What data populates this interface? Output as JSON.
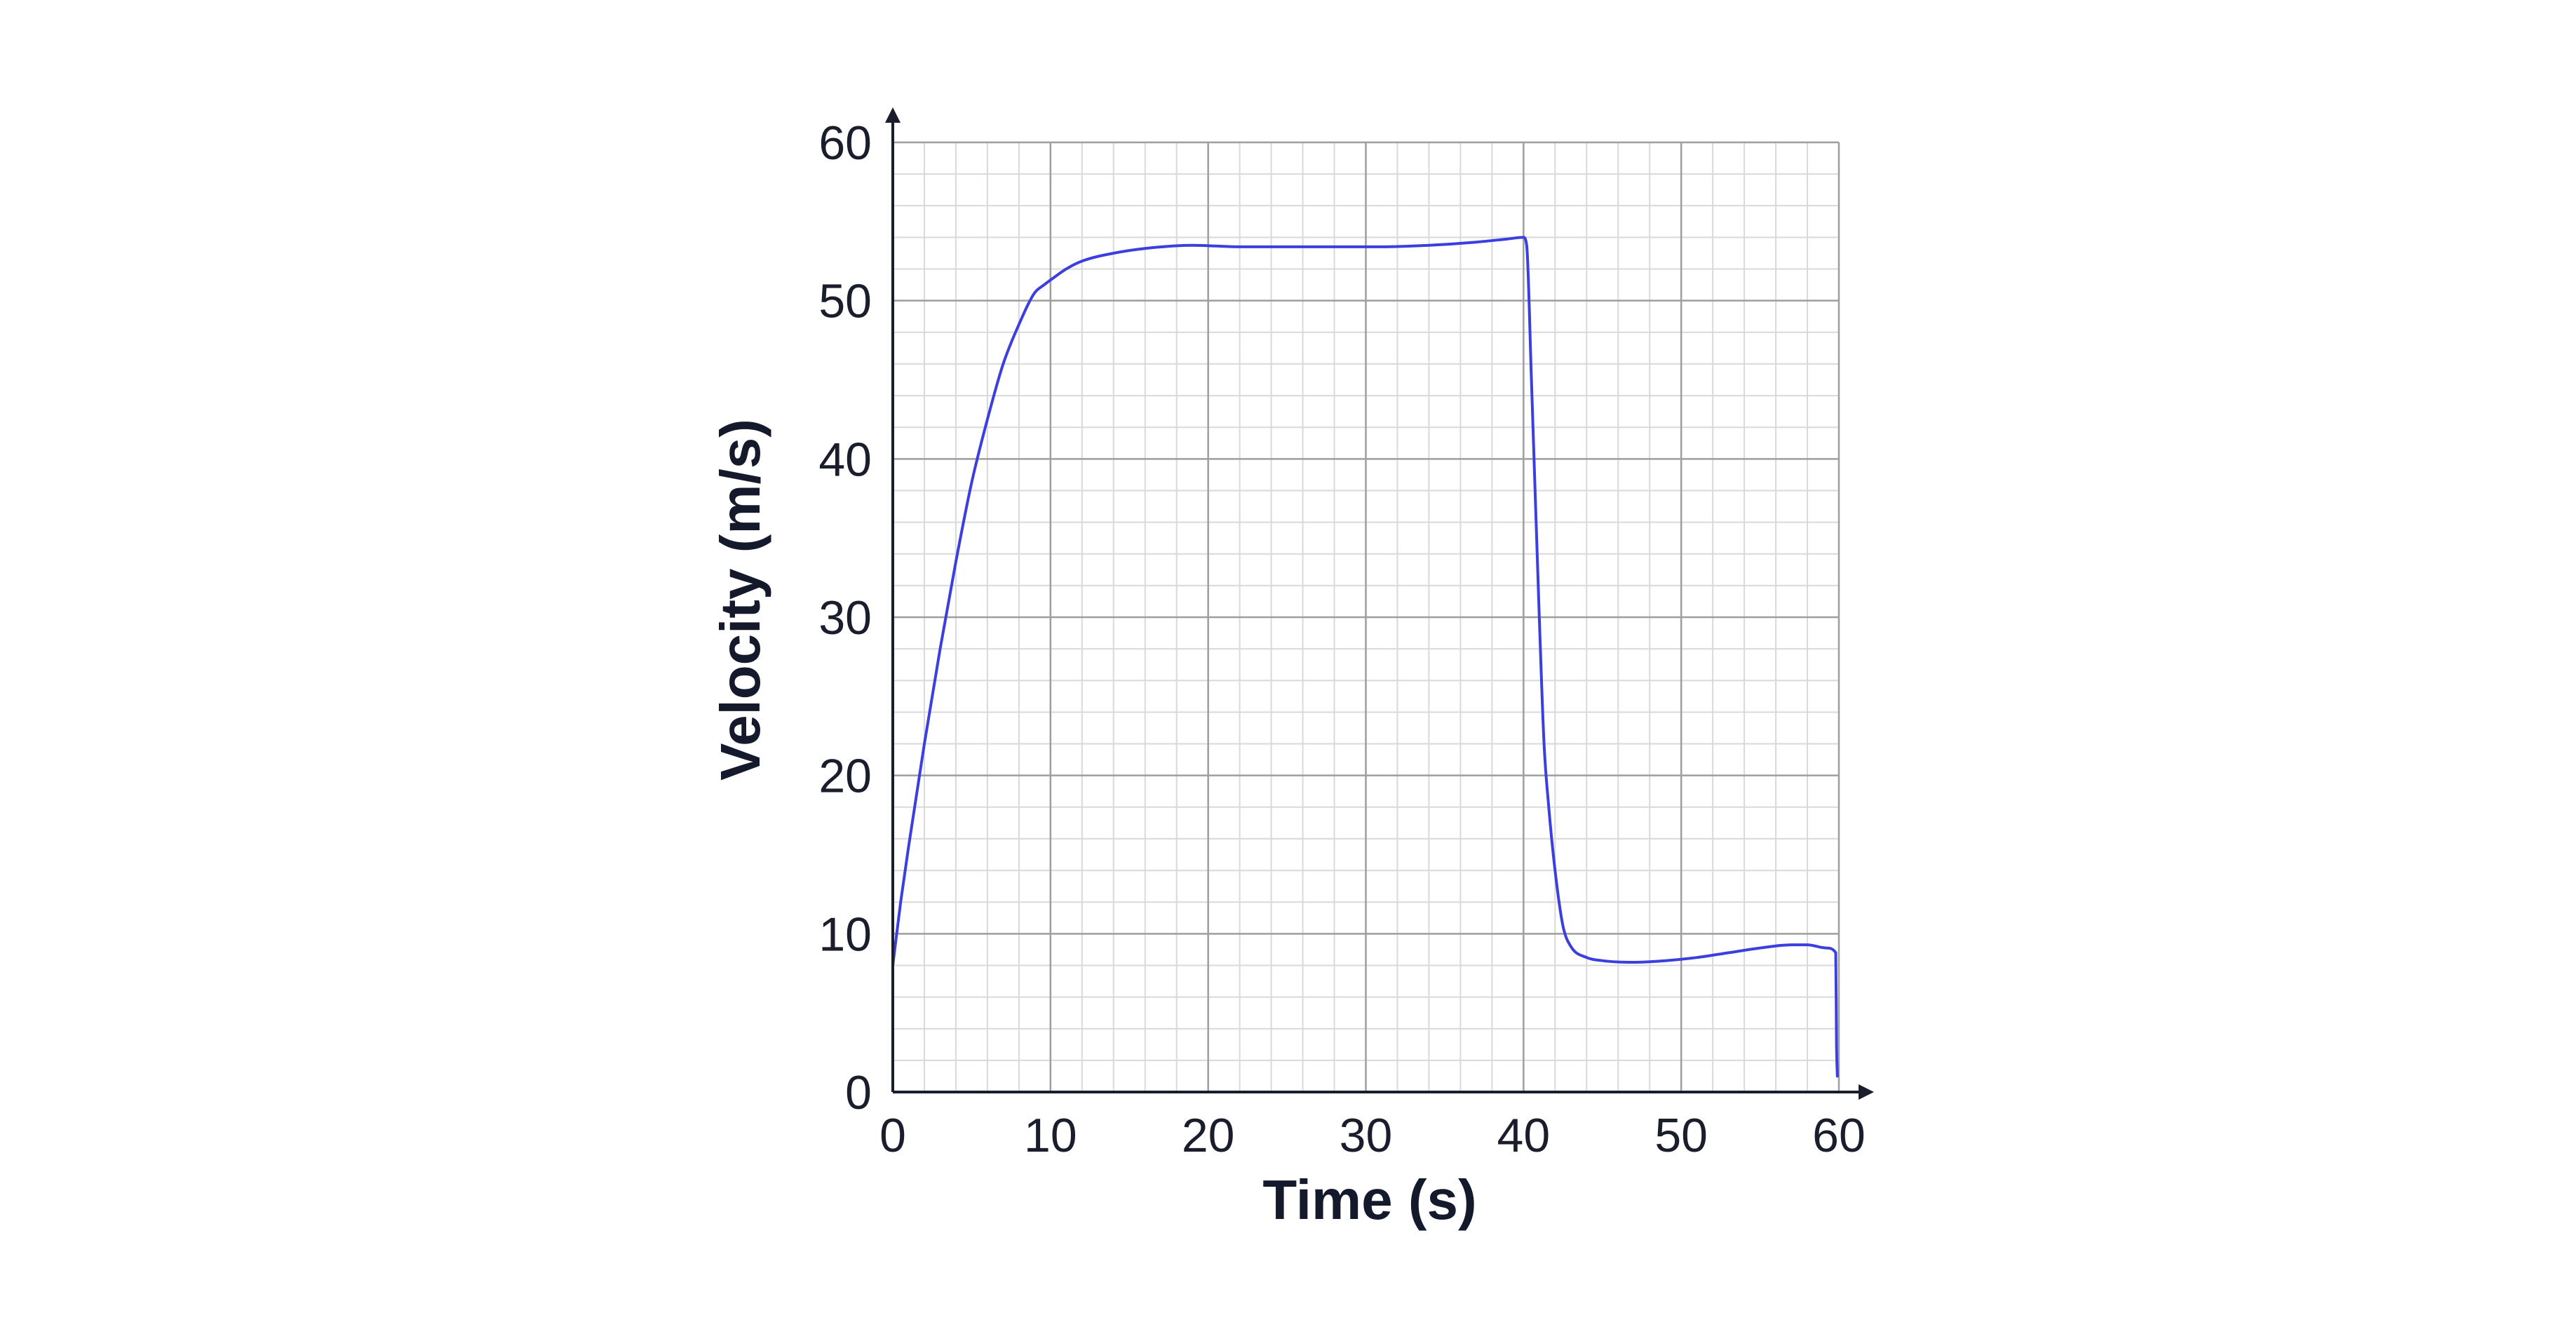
{
  "chart_data": {
    "type": "line",
    "title": "",
    "xlabel": "Time (s)",
    "ylabel": "Velocity (m/s)",
    "xlim": [
      0,
      60
    ],
    "ylim": [
      0,
      60
    ],
    "x_ticks": [
      0,
      10,
      20,
      30,
      40,
      50,
      60
    ],
    "y_ticks": [
      0,
      10,
      20,
      30,
      40,
      50,
      60
    ],
    "x_tick_labels": [
      "0",
      "10",
      "20",
      "30",
      "40",
      "50",
      "60"
    ],
    "y_tick_labels": [
      "0",
      "10",
      "20",
      "30",
      "40",
      "50",
      "60"
    ],
    "grid": true,
    "grid_minor_step": 2,
    "legend": "none",
    "series": [
      {
        "color": "#3b3fe0",
        "x": [
          0,
          0.5,
          1,
          2,
          3,
          4,
          5,
          6,
          7,
          8,
          9,
          9.6,
          10,
          11,
          12,
          14,
          16,
          19,
          22,
          25,
          28,
          31,
          34,
          37,
          39,
          40,
          40.2,
          40.5,
          41,
          41.3,
          41.6,
          42,
          42.5,
          43,
          44,
          45,
          47,
          49,
          51,
          53,
          55,
          57,
          58,
          59.2,
          59.8,
          59.85,
          59.9
        ],
        "y": [
          8,
          12,
          15.5,
          22,
          28,
          33.5,
          38.5,
          42.5,
          46,
          48.5,
          50.5,
          51,
          51.3,
          52,
          52.5,
          53,
          53.3,
          53.5,
          53.4,
          53.4,
          53.4,
          53.4,
          53.5,
          53.7,
          53.9,
          54,
          53.5,
          45,
          30,
          22,
          18,
          14,
          10.5,
          9.2,
          8.5,
          8.3,
          8.2,
          8.3,
          8.5,
          8.8,
          9.1,
          9.3,
          9.3,
          9.1,
          8.8,
          3,
          1
        ]
      }
    ]
  },
  "colors": {
    "line": "#3b3fe0",
    "axis": "#1a1d2b",
    "grid_major": "#9e9e9e",
    "grid_minor": "#d9d9d9",
    "text": "#14192b"
  }
}
